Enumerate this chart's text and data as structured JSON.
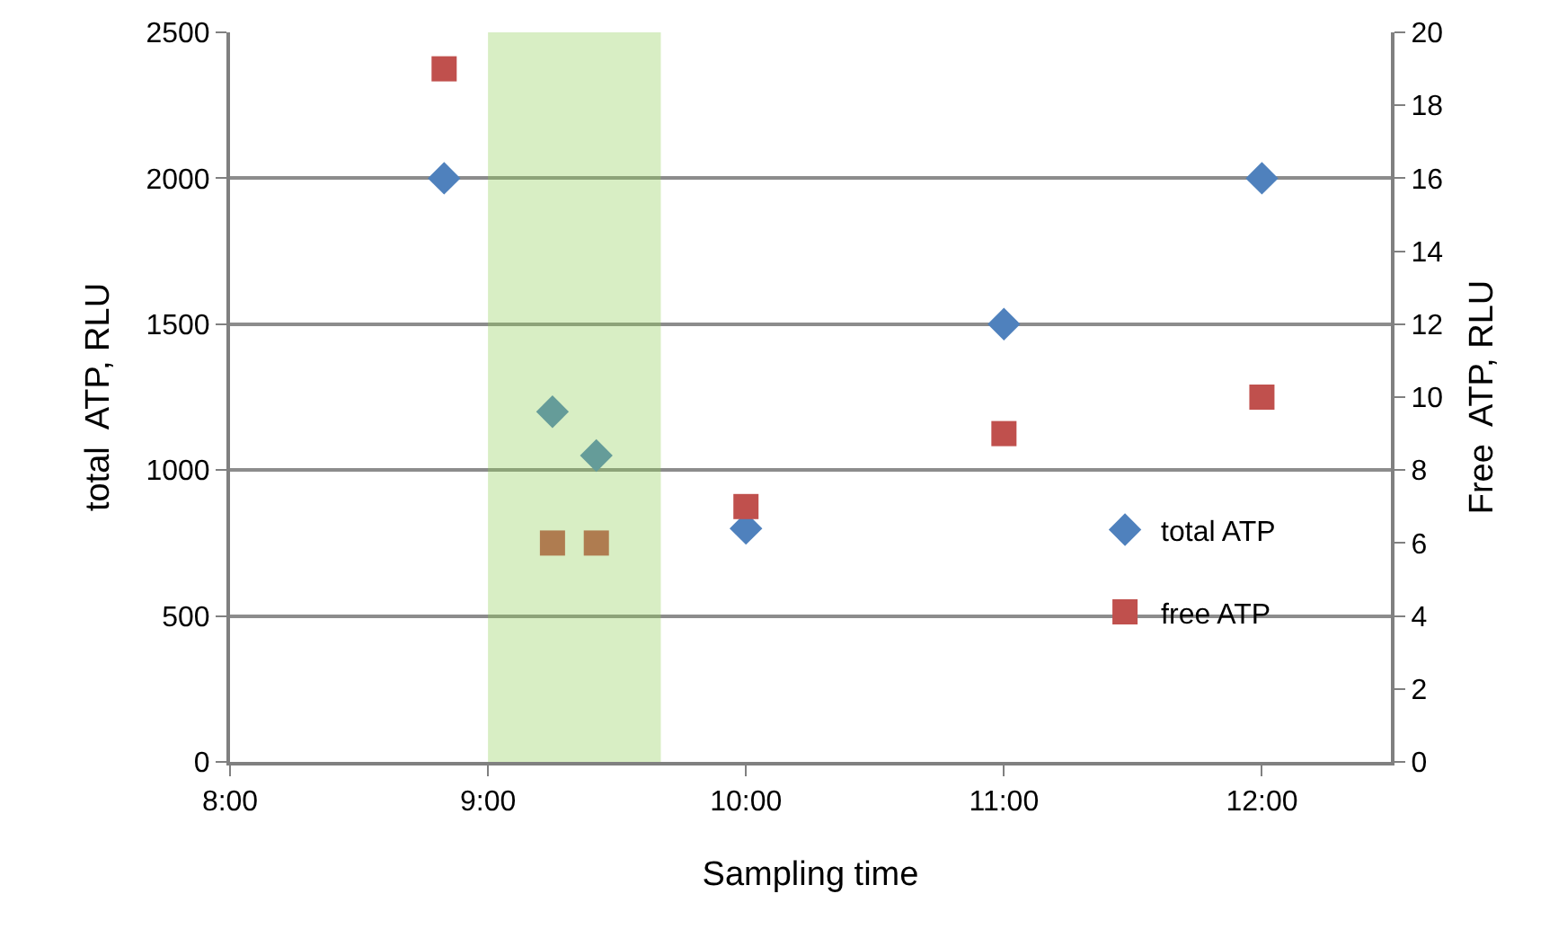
{
  "chart_data": {
    "type": "scatter",
    "xlabel": "Sampling time",
    "ylabel": "total  ATP, RLU",
    "y2label": "Free  ATP, RLU",
    "series": [
      {
        "name": "total ATP",
        "color": "#4f81bd",
        "marker": "diamond",
        "x": [
          8.83,
          9.25,
          9.42,
          10,
          11,
          12
        ],
        "values": [
          2000,
          1200,
          1050,
          800,
          1500,
          2000
        ]
      },
      {
        "name": "free ATP",
        "color": "#c0504d",
        "marker": "square",
        "axis": "y2",
        "x": [
          8.83,
          9.25,
          9.42,
          10,
          11,
          12
        ],
        "values": [
          19,
          6,
          6,
          7,
          9,
          10
        ]
      }
    ],
    "xlim": [
      8,
      12.5
    ],
    "xticks": [
      {
        "value": 8,
        "label": "8:00"
      },
      {
        "value": 9,
        "label": "9:00"
      },
      {
        "value": 10,
        "label": "10:00"
      },
      {
        "value": 11,
        "label": "11:00"
      },
      {
        "value": 12,
        "label": "12:00"
      }
    ],
    "ylim": [
      0,
      2500
    ],
    "yticks": [
      0,
      500,
      1000,
      1500,
      2000,
      2500
    ],
    "y2lim": [
      0,
      20
    ],
    "y2ticks": [
      0,
      2,
      4,
      6,
      8,
      10,
      12,
      14,
      16,
      18,
      20
    ],
    "bands": [
      {
        "axis": "x",
        "from": 9,
        "to": 9.67,
        "color": "#8fce56"
      }
    ],
    "grid": "y",
    "legend": "bottom right"
  }
}
